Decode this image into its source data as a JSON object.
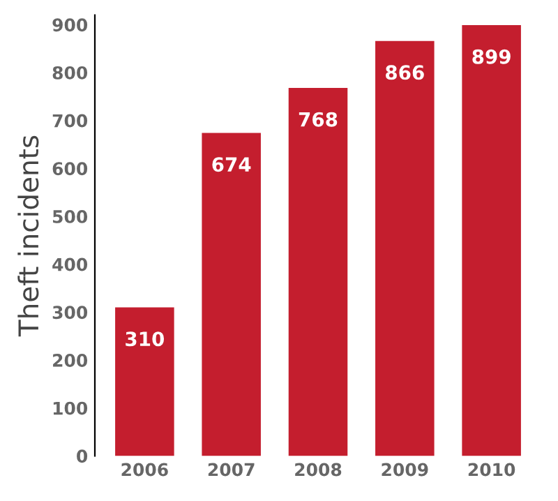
{
  "chart_data": {
    "type": "bar",
    "ylabel": "Theft incidents",
    "categories": [
      "2006",
      "2007",
      "2008",
      "2009",
      "2010"
    ],
    "values": [
      310,
      674,
      768,
      866,
      899
    ],
    "color": "#c41e2e",
    "ylim": [
      0,
      920
    ],
    "yticks": [
      0,
      100,
      200,
      300,
      400,
      500,
      600,
      700,
      800,
      900
    ],
    "data_labels": true,
    "grid": false
  }
}
